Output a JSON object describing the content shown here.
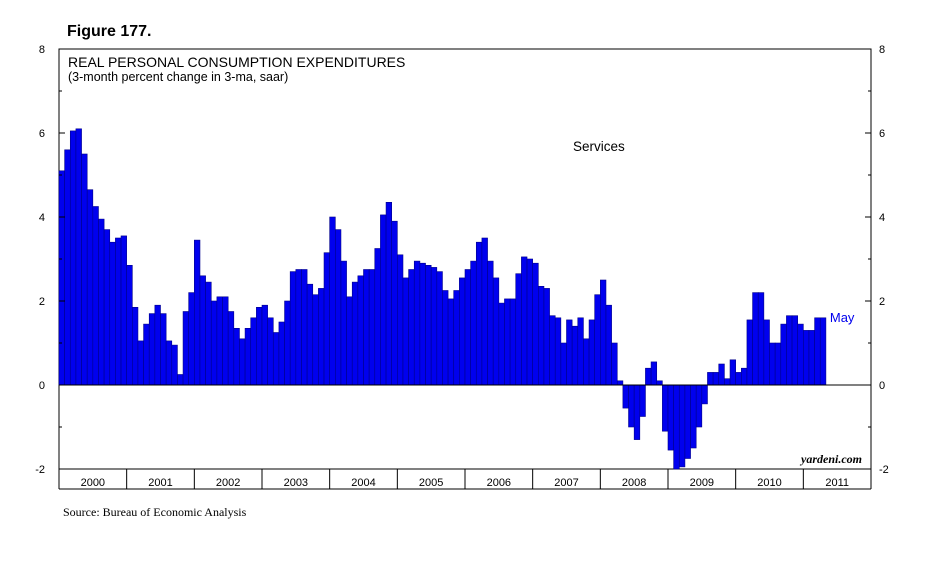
{
  "figure_label": "Figure 177.",
  "source": "Source: Bureau of Economic Analysis",
  "watermark": "yardeni.com",
  "chart_data": {
    "type": "bar",
    "title": "REAL PERSONAL CONSUMPTION EXPENDITURES",
    "subtitle": "(3-month percent change in 3-ma, saar)",
    "series_label": "Services",
    "last_label": "May",
    "bar_color": "#0000ee",
    "start": "2000-01",
    "end": "2011-05",
    "ylim": [
      -2,
      8
    ],
    "yticks": [
      -2,
      0,
      2,
      4,
      6,
      8
    ],
    "ytick_labels": [
      "-2",
      "0",
      "2",
      "4",
      "6",
      "8"
    ],
    "years": [
      "2000",
      "2001",
      "2002",
      "2003",
      "2004",
      "2005",
      "2006",
      "2007",
      "2008",
      "2009",
      "2010",
      "2011"
    ],
    "values": [
      5.1,
      5.6,
      6.05,
      6.1,
      5.5,
      4.65,
      4.25,
      3.95,
      3.7,
      3.4,
      3.5,
      3.55,
      2.85,
      1.85,
      1.05,
      1.45,
      1.7,
      1.9,
      1.7,
      1.05,
      0.95,
      0.25,
      1.75,
      2.2,
      3.45,
      2.6,
      2.45,
      2.0,
      2.1,
      2.1,
      1.75,
      1.35,
      1.1,
      1.35,
      1.6,
      1.85,
      1.9,
      1.6,
      1.25,
      1.5,
      2.0,
      2.7,
      2.75,
      2.75,
      2.4,
      2.15,
      2.3,
      3.15,
      4.0,
      3.7,
      2.95,
      2.1,
      2.45,
      2.6,
      2.75,
      2.75,
      3.25,
      4.05,
      4.35,
      3.9,
      3.1,
      2.55,
      2.75,
      2.95,
      2.9,
      2.85,
      2.8,
      2.7,
      2.25,
      2.05,
      2.25,
      2.55,
      2.75,
      2.95,
      3.4,
      3.5,
      2.95,
      2.55,
      1.95,
      2.05,
      2.05,
      2.65,
      3.05,
      3.0,
      2.9,
      2.35,
      2.3,
      1.65,
      1.6,
      1.0,
      1.55,
      1.4,
      1.6,
      1.1,
      1.55,
      2.15,
      2.5,
      1.9,
      1.0,
      0.1,
      -0.55,
      -1.0,
      -1.3,
      -0.75,
      0.4,
      0.55,
      0.1,
      -1.1,
      -1.55,
      -2.0,
      -1.95,
      -1.75,
      -1.5,
      -1.0,
      -0.45,
      0.3,
      0.3,
      0.5,
      0.15,
      0.6,
      0.3,
      0.4,
      1.55,
      2.2,
      2.2,
      1.55,
      1.0,
      1.0,
      1.45,
      1.65,
      1.65,
      1.45,
      1.3,
      1.3,
      1.6,
      1.6
    ]
  }
}
